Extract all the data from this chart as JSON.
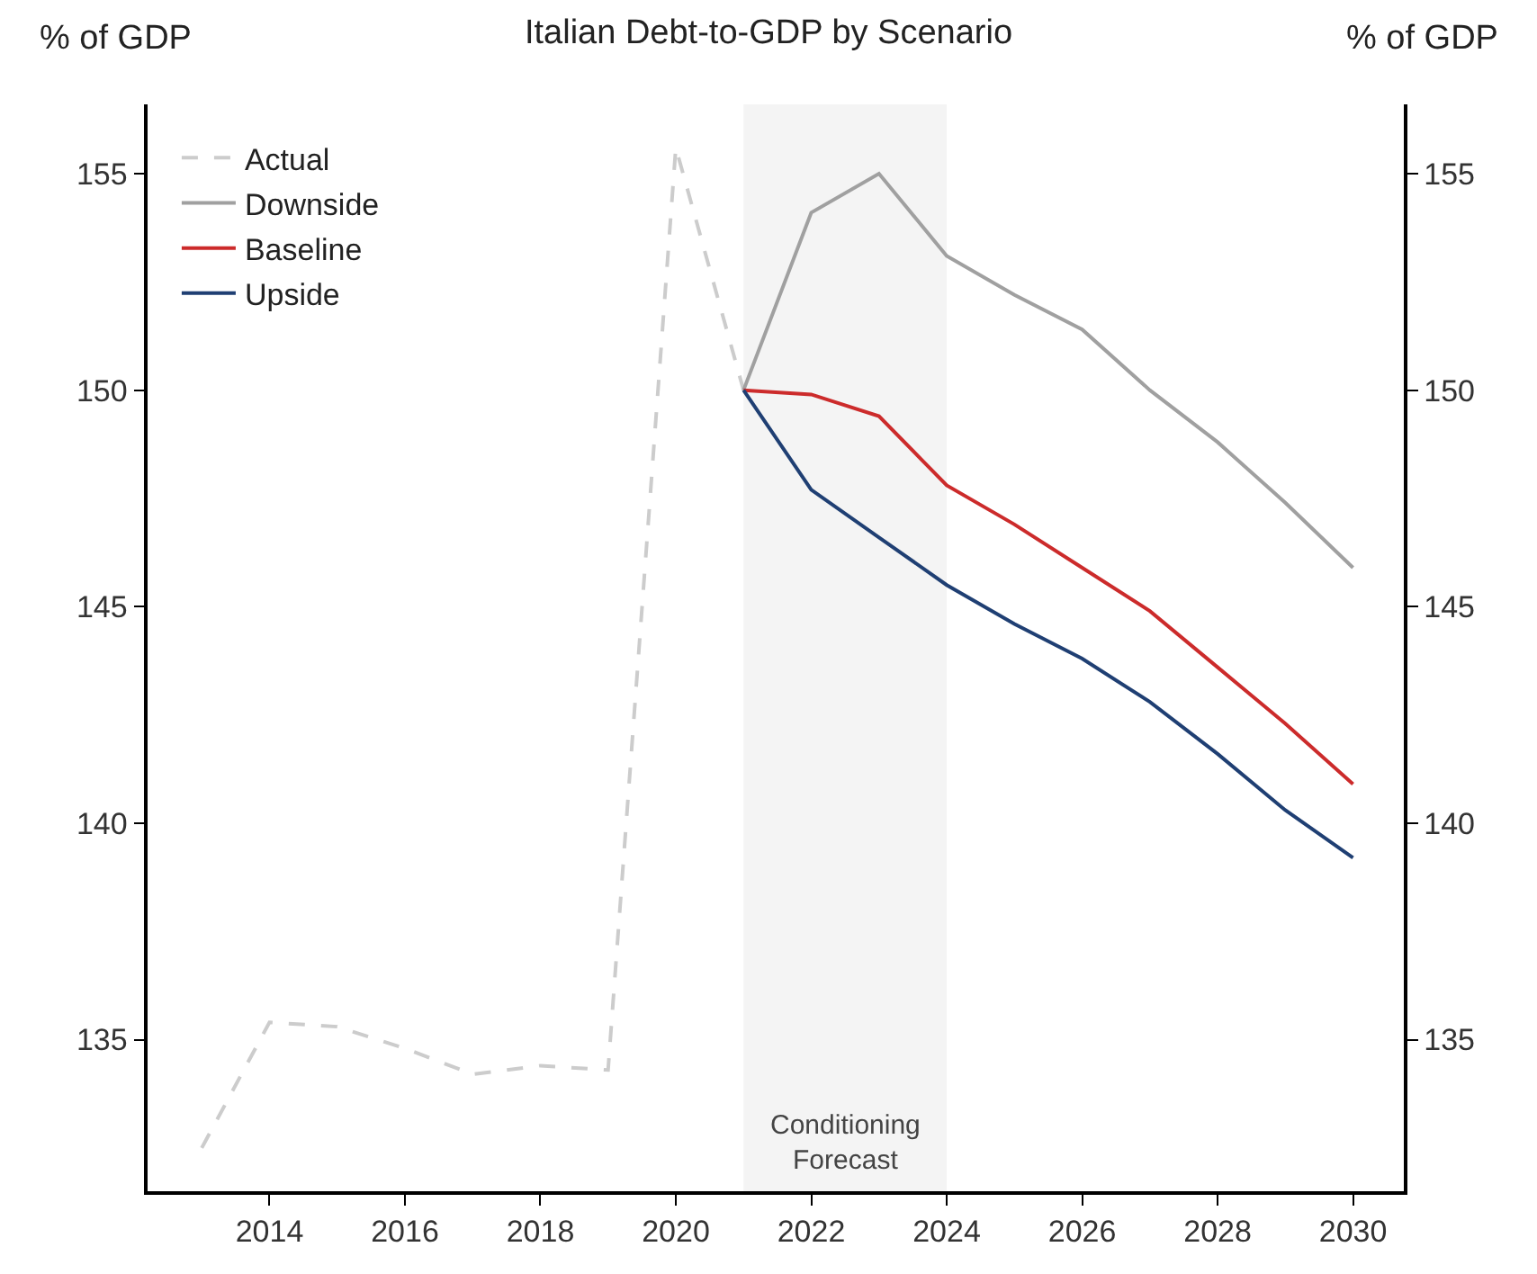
{
  "chart_data": {
    "type": "line",
    "title": "Italian Debt-to-GDP by Scenario",
    "ylabel": "% of GDP",
    "y2label": "% of GDP",
    "x": [
      2013,
      2014,
      2015,
      2016,
      2017,
      2018,
      2019,
      2020,
      2021,
      2022,
      2023,
      2024,
      2025,
      2026,
      2027,
      2028,
      2029,
      2030
    ],
    "series": [
      {
        "name": "Actual",
        "color": "#cccccc",
        "line_style": "dashed",
        "values": [
          132.5,
          135.4,
          135.3,
          134.8,
          134.2,
          134.4,
          134.3,
          155.6,
          150.0,
          null,
          null,
          null,
          null,
          null,
          null,
          null,
          null,
          null
        ]
      },
      {
        "name": "Downside",
        "color": "#a0a0a0",
        "values": [
          null,
          null,
          null,
          null,
          null,
          null,
          null,
          null,
          150.0,
          154.1,
          155.0,
          153.1,
          152.2,
          151.4,
          150.0,
          148.8,
          147.4,
          145.9
        ]
      },
      {
        "name": "Baseline",
        "color": "#cc2b2b",
        "values": [
          null,
          null,
          null,
          null,
          null,
          null,
          null,
          null,
          150.0,
          149.9,
          149.4,
          147.8,
          146.9,
          145.9,
          144.9,
          143.6,
          142.3,
          140.9
        ]
      },
      {
        "name": "Upside",
        "color": "#1f3f73",
        "values": [
          null,
          null,
          null,
          null,
          null,
          null,
          null,
          null,
          150.0,
          147.7,
          146.6,
          145.5,
          144.6,
          143.8,
          142.8,
          141.6,
          140.3,
          139.2
        ]
      }
    ],
    "bands": [
      {
        "axis": "x",
        "from": 2021,
        "to": 2024,
        "label": "Conditioning Forecast",
        "color": "#f4f4f4"
      }
    ],
    "xlim": [
      2012.2,
      2030.75
    ],
    "xticks": [
      2014,
      2016,
      2018,
      2020,
      2022,
      2024,
      2026,
      2028,
      2030
    ],
    "ylim": [
      131.5,
      156.6
    ],
    "yticks": [
      135,
      140,
      145,
      150,
      155
    ],
    "y2lim": [
      131.5,
      156.6
    ],
    "y2ticks": [
      135,
      140,
      145,
      150,
      155
    ],
    "grid": false,
    "legend": "top left",
    "marker": "none",
    "line_style": "solid"
  }
}
